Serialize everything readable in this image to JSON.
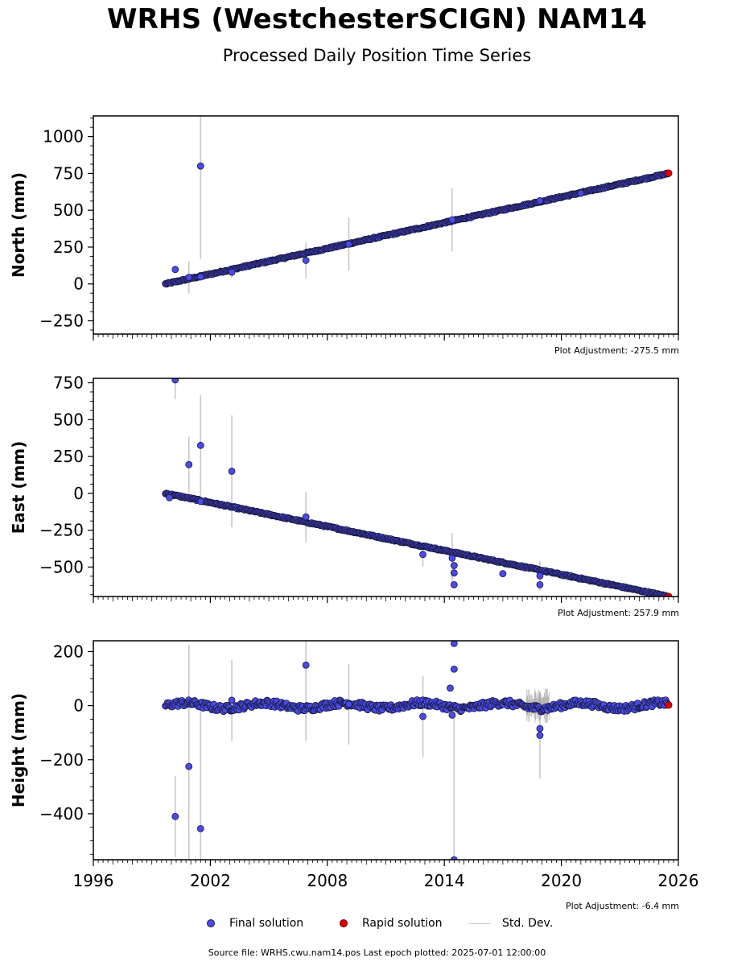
{
  "header": {
    "title": "WRHS (WestchesterSCIGN) NAM14",
    "subtitle": "Processed Daily Position Time Series"
  },
  "legend": {
    "final": "Final solution",
    "rapid": "Rapid solution",
    "stddev": "Std. Dev."
  },
  "footer": {
    "source": "Source file: WRHS.cwu.nam14.pos  Last epoch plotted: 2025-07-01 12:00:00"
  },
  "colors": {
    "final": "#4a4ae8",
    "rapid": "#e00000",
    "stddev": "#c8c8c8",
    "edge": "#1a1a40"
  },
  "chart_data": [
    {
      "type": "scatter",
      "ylabel": "North (mm)",
      "adjustment": "Plot Adjustment: -275.5 mm",
      "xlim": [
        1996,
        2026
      ],
      "ylim": [
        -340,
        1140
      ],
      "yticks": [
        -250,
        0,
        250,
        500,
        750,
        1000
      ],
      "trend": {
        "start": [
          1999.7,
          0
        ],
        "end": [
          2025.5,
          750
        ],
        "noise": 5
      },
      "outliers": [
        {
          "x": 2000.2,
          "y": 98,
          "err": 0
        },
        {
          "x": 2000.9,
          "y": 45,
          "err": 110
        },
        {
          "x": 2001.5,
          "y": 800,
          "err": 630
        },
        {
          "x": 2001.5,
          "y": 48,
          "err": 0
        },
        {
          "x": 2003.1,
          "y": 80,
          "err": 40
        },
        {
          "x": 2006.9,
          "y": 160,
          "err": 120
        },
        {
          "x": 2009.1,
          "y": 270,
          "err": 180
        },
        {
          "x": 2014.4,
          "y": 435,
          "err": 215
        },
        {
          "x": 2018.9,
          "y": 565,
          "err": 0
        },
        {
          "x": 2021.0,
          "y": 615,
          "err": 0
        }
      ],
      "rapid": [
        {
          "x": 2025.5,
          "y": 752
        }
      ]
    },
    {
      "type": "scatter",
      "ylabel": "East (mm)",
      "adjustment": "Plot Adjustment: 257.9 mm",
      "xlim": [
        1996,
        2026
      ],
      "ylim": [
        -700,
        780
      ],
      "yticks": [
        -500,
        -250,
        0,
        250,
        500,
        750
      ],
      "trend": {
        "start": [
          1999.7,
          0
        ],
        "end": [
          2025.5,
          -700
        ],
        "noise": 5
      },
      "outliers": [
        {
          "x": 2000.2,
          "y": 770,
          "err": 130
        },
        {
          "x": 1999.9,
          "y": -30,
          "err": 0
        },
        {
          "x": 2000.9,
          "y": 195,
          "err": 190
        },
        {
          "x": 2001.5,
          "y": 325,
          "err": 340
        },
        {
          "x": 2001.5,
          "y": -55,
          "err": 0
        },
        {
          "x": 2003.1,
          "y": 150,
          "err": 380
        },
        {
          "x": 2006.9,
          "y": -160,
          "err": 170
        },
        {
          "x": 2012.9,
          "y": -415,
          "err": 80
        },
        {
          "x": 2014.4,
          "y": -440,
          "err": 170
        },
        {
          "x": 2014.5,
          "y": -490,
          "err": 0
        },
        {
          "x": 2014.5,
          "y": -540,
          "err": 0
        },
        {
          "x": 2014.5,
          "y": -620,
          "err": 0
        },
        {
          "x": 2017.0,
          "y": -545,
          "err": 0
        },
        {
          "x": 2018.9,
          "y": -620,
          "err": 0
        },
        {
          "x": 2018.9,
          "y": -560,
          "err": 100
        }
      ],
      "rapid": [
        {
          "x": 2025.5,
          "y": -700
        }
      ]
    },
    {
      "type": "scatter",
      "ylabel": "Height (mm)",
      "adjustment": "Plot Adjustment: -6.4 mm",
      "xlim": [
        1996,
        2026
      ],
      "ylim": [
        -570,
        240
      ],
      "yticks": [
        -400,
        -200,
        0,
        200
      ],
      "xticks": [
        1996,
        2002,
        2008,
        2014,
        2020,
        2026
      ],
      "trend": {
        "start": [
          1999.7,
          0
        ],
        "end": [
          2025.5,
          0
        ],
        "noise": 12
      },
      "outliers": [
        {
          "x": 2000.2,
          "y": -410,
          "err": 150
        },
        {
          "x": 2000.9,
          "y": -225,
          "err": 450
        },
        {
          "x": 2001.5,
          "y": -455,
          "err": 450
        },
        {
          "x": 2003.1,
          "y": 20,
          "err": 150
        },
        {
          "x": 2006.9,
          "y": 150,
          "err": 280
        },
        {
          "x": 2009.1,
          "y": 5,
          "err": 150
        },
        {
          "x": 2012.9,
          "y": -40,
          "err": 150
        },
        {
          "x": 2014.3,
          "y": 65,
          "err": 0
        },
        {
          "x": 2014.4,
          "y": -35,
          "err": 0
        },
        {
          "x": 2014.5,
          "y": 230,
          "err": 0
        },
        {
          "x": 2014.5,
          "y": 135,
          "err": 0
        },
        {
          "x": 2014.5,
          "y": -570,
          "err": 570
        },
        {
          "x": 2018.9,
          "y": -85,
          "err": 0
        },
        {
          "x": 2018.9,
          "y": -110,
          "err": 160
        }
      ],
      "rapid": [
        {
          "x": 2025.5,
          "y": 2
        }
      ]
    }
  ]
}
